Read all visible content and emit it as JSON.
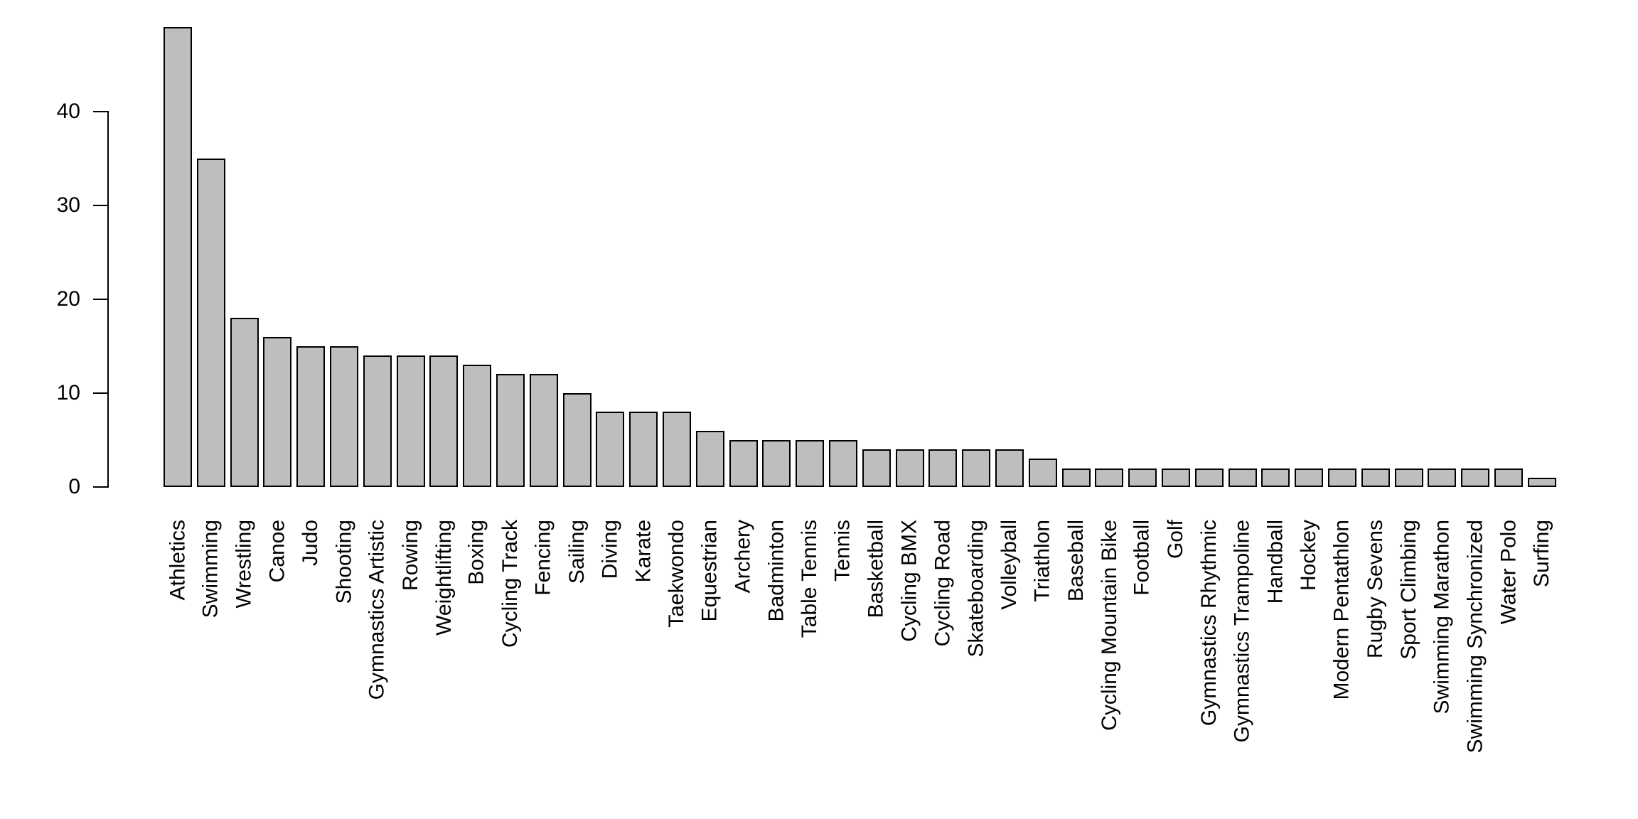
{
  "chart_data": {
    "type": "bar",
    "title": "",
    "xlabel": "",
    "ylabel": "",
    "categories": [
      "Athletics",
      "Swimming",
      "Wrestling",
      "Canoe",
      "Judo",
      "Shooting",
      "Gymnastics Artistic",
      "Rowing",
      "Weightlifting",
      "Boxing",
      "Cycling Track",
      "Fencing",
      "Sailing",
      "Diving",
      "Karate",
      "Taekwondo",
      "Equestrian",
      "Archery",
      "Badminton",
      "Table Tennis",
      "Tennis",
      "Basketball",
      "Cycling BMX",
      "Cycling Road",
      "Skateboarding",
      "Volleyball",
      "Triathlon",
      "Baseball",
      "Cycling Mountain Bike",
      "Football",
      "Golf",
      "Gymnastics Rhythmic",
      "Gymnastics Trampoline",
      "Handball",
      "Hockey",
      "Modern Pentathlon",
      "Rugby Sevens",
      "Sport Climbing",
      "Swimming Marathon",
      "Swimming Synchronized",
      "Water Polo",
      "Surfing"
    ],
    "values": [
      49,
      35,
      18,
      16,
      15,
      15,
      14,
      14,
      14,
      13,
      12,
      12,
      10,
      8,
      8,
      8,
      6,
      5,
      5,
      5,
      5,
      4,
      4,
      4,
      4,
      4,
      3,
      2,
      2,
      2,
      2,
      2,
      2,
      2,
      2,
      2,
      2,
      2,
      2,
      2,
      2,
      1
    ],
    "yticks": [
      0,
      10,
      20,
      30,
      40
    ],
    "ylim": [
      0,
      49
    ],
    "x_tick_rotation_degrees": 90,
    "grid": false,
    "legend_position": "none",
    "bar_fill_color": "#bebebe",
    "bar_border_color": "#000000",
    "axis_color": "#000000",
    "text_color": "#000000",
    "background_color": "#ffffff"
  }
}
